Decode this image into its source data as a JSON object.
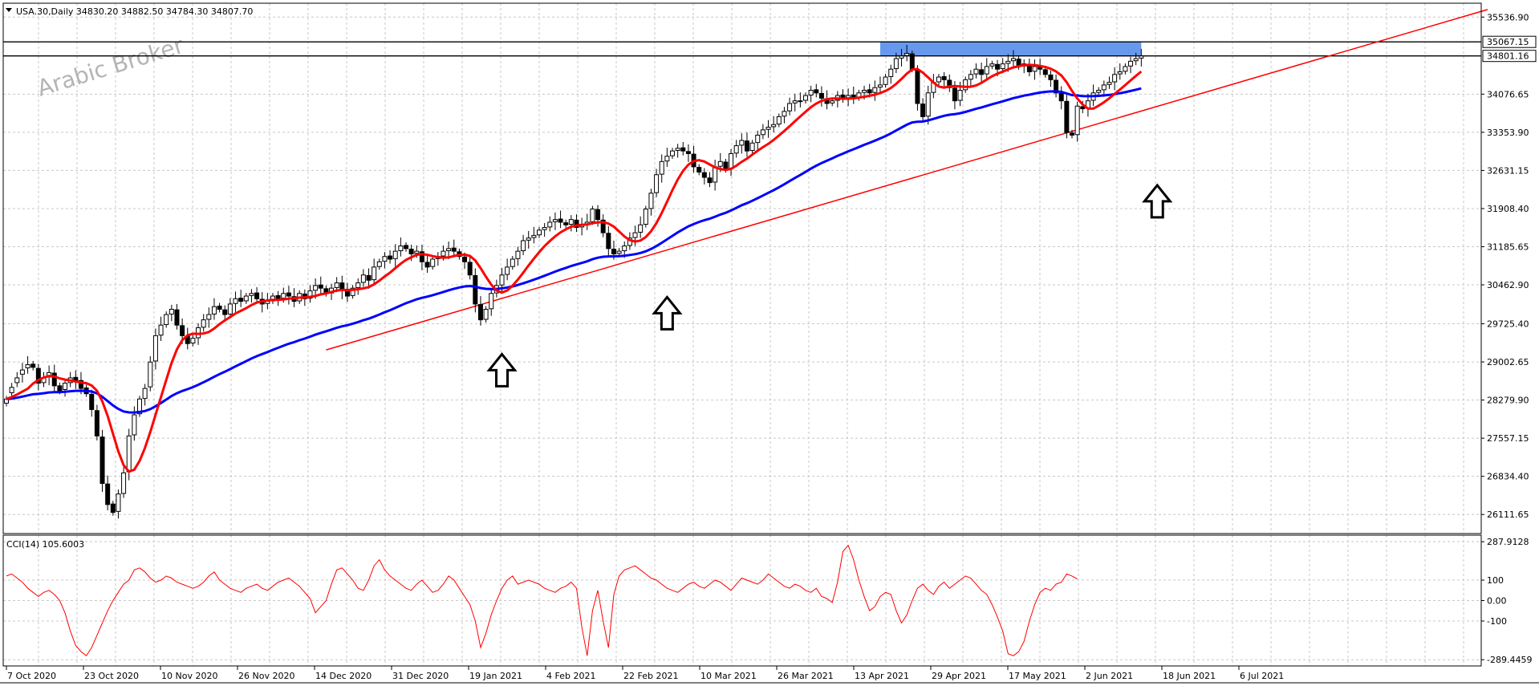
{
  "window": {
    "symbol_info": "USA.30,Daily  34830.20 34882.50 34784.30 34807.70",
    "watermark": "Arabic Broker"
  },
  "colors": {
    "background": "#ffffff",
    "grid": "#c8c8c8",
    "candle_up_fill": "#ffffff",
    "candle_down_fill": "#000000",
    "candle_outline": "#000000",
    "ma_fast": "#ff0000",
    "ma_slow": "#0000ff",
    "trendline": "#ff0000",
    "resistance_zone": "#6699ee",
    "cci_line": "#ff0000",
    "watermark": "#b4b4b4"
  },
  "chart_data": [
    {
      "type": "candlestick",
      "title": "USA.30,Daily",
      "ylim": [
        25750,
        35800
      ],
      "y_ticks": [
        "35536.90",
        "34076.65",
        "33353.90",
        "32631.15",
        "31908.40",
        "31185.65",
        "30462.90",
        "29725.40",
        "29002.65",
        "28279.90",
        "27557.15",
        "26834.40",
        "26111.65"
      ],
      "y_tick_values": [
        35536.9,
        34076.65,
        33353.9,
        32631.15,
        31908.4,
        31185.65,
        30462.9,
        29725.4,
        29002.65,
        28279.9,
        27557.15,
        26834.4,
        26111.65
      ],
      "price_labels": [
        {
          "text": "35067.15",
          "value": 35067.15
        },
        {
          "text": "34801.16",
          "value": 34801.16
        }
      ],
      "x_labels": [
        "7 Oct 2020",
        "23 Oct 2020",
        "10 Nov 2020",
        "26 Nov 2020",
        "14 Dec 2020",
        "31 Dec 2020",
        "19 Jan 2021",
        "4 Feb 2021",
        "22 Feb 2021",
        "10 Mar 2021",
        "26 Mar 2021",
        "13 Apr 2021",
        "29 Apr 2021",
        "17 May 2021",
        "2 Jun 2021",
        "18 Jun 2021",
        "6 Jul 2021"
      ],
      "candles_close": [
        28300,
        28520,
        28700,
        28850,
        28950,
        28900,
        28600,
        28700,
        28800,
        28550,
        28450,
        28600,
        28700,
        28650,
        28500,
        28400,
        28100,
        27600,
        26700,
        26300,
        26150,
        26500,
        26900,
        27600,
        28000,
        28300,
        28500,
        29000,
        29500,
        29700,
        29900,
        30000,
        29700,
        29500,
        29350,
        29450,
        29650,
        29800,
        29900,
        30050,
        30000,
        29900,
        30100,
        30200,
        30150,
        30250,
        30300,
        30200,
        30100,
        30150,
        30250,
        30200,
        30300,
        30250,
        30150,
        30300,
        30200,
        30350,
        30450,
        30400,
        30300,
        30400,
        30500,
        30350,
        30250,
        30400,
        30500,
        30650,
        30550,
        30800,
        30900,
        31000,
        30950,
        31100,
        31200,
        31150,
        31050,
        31100,
        30900,
        30800,
        30950,
        31000,
        31100,
        31150,
        31100,
        31000,
        30900,
        30650,
        30100,
        29800,
        30000,
        30300,
        30450,
        30650,
        30800,
        30950,
        31100,
        31300,
        31350,
        31400,
        31500,
        31550,
        31650,
        31700,
        31650,
        31600,
        31700,
        31550,
        31600,
        31650,
        31900,
        31700,
        31450,
        31150,
        31050,
        31100,
        31200,
        31350,
        31450,
        31600,
        31900,
        32200,
        32550,
        32800,
        32900,
        33000,
        33050,
        33000,
        32950,
        32700,
        32600,
        32500,
        32400,
        32700,
        32800,
        32650,
        32950,
        33100,
        33200,
        33000,
        33150,
        33300,
        33400,
        33450,
        33500,
        33650,
        33750,
        33900,
        33950,
        33950,
        34050,
        34150,
        34100,
        34000,
        33900,
        33950,
        34050,
        34000,
        34050,
        34000,
        34100,
        34150,
        34100,
        34200,
        34250,
        34400,
        34550,
        34750,
        34800,
        34850,
        34550,
        33900,
        33650,
        34100,
        34300,
        34400,
        34350,
        34200,
        33950,
        34150,
        34350,
        34450,
        34550,
        34450,
        34600,
        34650,
        34550,
        34650,
        34700,
        34750,
        34600,
        34650,
        34500,
        34600,
        34550,
        34450,
        34350,
        34100,
        33950,
        33350,
        33300,
        33850,
        33800,
        33950,
        34100,
        34150,
        34250,
        34300,
        34450,
        34500,
        34600,
        34700,
        34750,
        34800
      ],
      "candles_open_offset": [
        -80,
        -100,
        -90,
        -80,
        -60,
        60,
        280,
        -90,
        -80,
        240,
        100,
        -120,
        -90,
        60,
        150,
        110,
        290,
        480,
        880,
        390,
        160,
        -330,
        -390,
        -680,
        -380,
        -280,
        -190,
        -470,
        -480,
        -190,
        -190,
        -90,
        290,
        190,
        140,
        -90,
        -190,
        -140,
        -90,
        -140,
        60,
        90,
        -190,
        -90,
        60,
        -90,
        -40,
        110,
        90,
        -40,
        -90,
        60,
        -90,
        60,
        90,
        -140,
        90,
        -140,
        -90,
        60,
        90,
        -90,
        -90,
        150,
        90,
        -140,
        -90,
        -140,
        90,
        -240,
        -90,
        -90,
        60,
        -140,
        -90,
        60,
        90,
        -40,
        190,
        90,
        -140,
        -40,
        -90,
        -40,
        60,
        90,
        90,
        240,
        540,
        290,
        -190,
        -290,
        -140,
        -190,
        -140,
        -140,
        -140,
        -190,
        -40,
        -40,
        -90,
        -40,
        -90,
        -40,
        60,
        40,
        -90,
        140,
        -40,
        -40,
        -240,
        190,
        240,
        290,
        90,
        -40,
        -90,
        -140,
        -90,
        -140,
        -290,
        -290,
        -340,
        -240,
        -90,
        -90,
        -40,
        60,
        40,
        240,
        90,
        90,
        90,
        -290,
        -90,
        140,
        -290,
        -140,
        -90,
        190,
        -140,
        -140,
        -90,
        -40,
        -40,
        -140,
        -90,
        -140,
        -40,
        -15,
        -90,
        -90,
        60,
        90,
        90,
        -40,
        -90,
        60,
        -40,
        60,
        -90,
        -40,
        60,
        -90,
        -40,
        -140,
        -140,
        -190,
        -40,
        -40,
        290,
        640,
        240,
        -440,
        -190,
        -90,
        60,
        140,
        240,
        -190,
        -190,
        -90,
        -90,
        90,
        -140,
        -40,
        90,
        -90,
        -40,
        -40,
        140,
        -40,
        140,
        -90,
        40,
        90,
        90,
        240,
        140,
        590,
        40,
        -540,
        40,
        -140,
        -140,
        -40,
        -90,
        -40,
        -140,
        -40,
        -90,
        -90,
        -40,
        -40
      ],
      "ma_fast": {
        "name": "",
        "color": "#ff0000"
      },
      "ma_slow": {
        "name": "",
        "color": "#0000ff"
      },
      "trendline": {
        "from": {
          "index": 60,
          "value": 29230
        },
        "to": {
          "index": 278,
          "value": 35680
        }
      },
      "resistance_zone": {
        "from_index": 164,
        "to_index": 213,
        "y1": 34801.16,
        "y2": 35067.15
      },
      "horizontal_lines": [
        35067.15,
        34801.16
      ],
      "annotations": [
        {
          "type": "up-arrow",
          "index": 93,
          "value": 29150
        },
        {
          "type": "up-arrow",
          "index": 124,
          "value": 30230
        },
        {
          "type": "up-arrow",
          "index": 216,
          "value": 32350
        }
      ]
    },
    {
      "type": "line",
      "title": "CCI(14) 105.6003",
      "ylim": [
        -320,
        320
      ],
      "y_ticks": [
        "287.9128",
        "100",
        "0.00",
        "-100",
        "-289.4459"
      ],
      "y_tick_values": [
        287.9128,
        100,
        0,
        -100,
        -289.4459
      ],
      "series": [
        {
          "name": "CCI(14)",
          "color": "#ff0000",
          "values": [
            120,
            130,
            110,
            90,
            60,
            40,
            20,
            40,
            50,
            30,
            0,
            -60,
            -150,
            -220,
            -250,
            -270,
            -230,
            -170,
            -110,
            -50,
            0,
            40,
            80,
            100,
            150,
            160,
            140,
            110,
            90,
            100,
            120,
            110,
            90,
            80,
            70,
            60,
            70,
            90,
            120,
            140,
            100,
            80,
            60,
            50,
            40,
            60,
            70,
            80,
            60,
            50,
            70,
            90,
            100,
            110,
            90,
            70,
            40,
            10,
            -60,
            -30,
            0,
            80,
            150,
            160,
            130,
            100,
            60,
            50,
            100,
            170,
            200,
            150,
            120,
            100,
            80,
            60,
            50,
            80,
            100,
            70,
            40,
            50,
            80,
            120,
            100,
            60,
            20,
            -20,
            -100,
            -230,
            -160,
            -70,
            0,
            60,
            100,
            120,
            80,
            90,
            100,
            90,
            80,
            60,
            50,
            40,
            60,
            70,
            90,
            60,
            -130,
            -270,
            -50,
            50,
            -100,
            -230,
            30,
            120,
            150,
            160,
            170,
            150,
            130,
            110,
            100,
            80,
            60,
            50,
            40,
            60,
            80,
            90,
            70,
            60,
            80,
            100,
            90,
            70,
            50,
            80,
            110,
            100,
            90,
            80,
            100,
            130,
            110,
            90,
            70,
            60,
            80,
            70,
            50,
            40,
            60,
            20,
            10,
            -10,
            90,
            240,
            270,
            200,
            100,
            20,
            -50,
            -30,
            20,
            40,
            30,
            -50,
            -110,
            -70,
            0,
            60,
            80,
            50,
            30,
            70,
            90,
            60,
            80,
            100,
            120,
            110,
            80,
            50,
            30,
            -20,
            -80,
            -150,
            -260,
            -270,
            -250,
            -200,
            -100,
            -20,
            40,
            60,
            50,
            80,
            90,
            130,
            120,
            105.6003
          ]
        }
      ]
    }
  ]
}
